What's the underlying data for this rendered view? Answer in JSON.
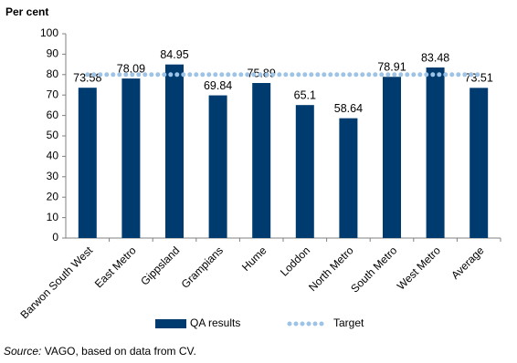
{
  "chart_data": {
    "type": "bar",
    "y_axis_label": "Per cent",
    "categories": [
      "Barwon South West",
      "East Metro",
      "Gippsland",
      "Grampians",
      "Hume",
      "Loddon",
      "North Metro",
      "South Metro",
      "West Metro",
      "Average"
    ],
    "series": [
      {
        "name": "QA results",
        "color": "#003b6f",
        "values": [
          73.58,
          78.09,
          84.95,
          69.84,
          75.89,
          65.1,
          58.64,
          78.91,
          83.48,
          73.51
        ]
      },
      {
        "name": "Target",
        "type": "line",
        "color": "#9dc3e6",
        "values": [
          80,
          80,
          80,
          80,
          80,
          80,
          80,
          80,
          80,
          80
        ]
      }
    ],
    "ylim": [
      0,
      100
    ],
    "yticks": [
      0,
      10,
      20,
      30,
      40,
      50,
      60,
      70,
      80,
      90,
      100
    ],
    "grid": false,
    "legend": "bottom",
    "source_label": "Source:",
    "source_text": "VAGO, based on data from CV."
  }
}
